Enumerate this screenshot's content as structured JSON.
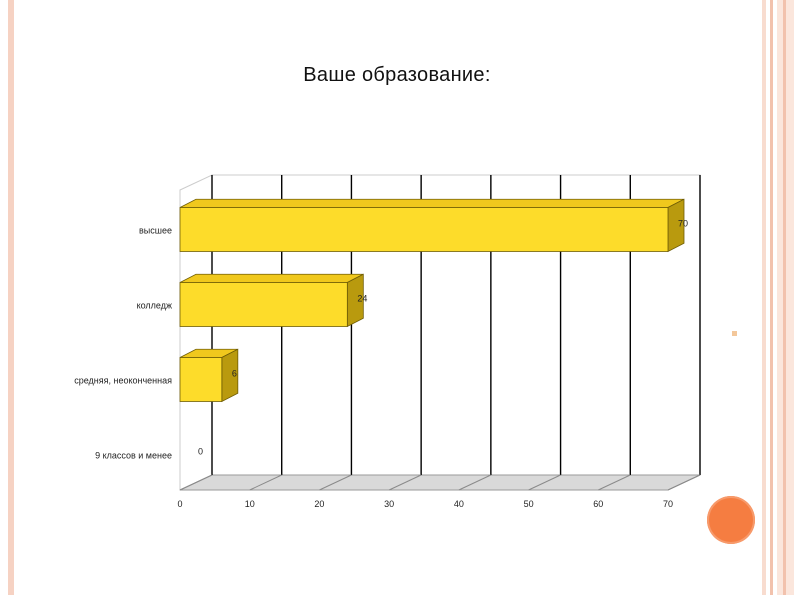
{
  "slide": {
    "title": "Ваше образование:"
  },
  "colors": {
    "bar_face": "#fddc2a",
    "bar_top": "#f0c81d",
    "bar_side": "#b99a0e",
    "grid": "#000000",
    "accent_circle": "#f57d41"
  },
  "chart_data": {
    "type": "bar",
    "orientation": "horizontal",
    "title": "",
    "xlabel": "",
    "ylabel": "",
    "categories": [
      "высшее",
      "колледж",
      "средняя, неоконченная",
      "9 классов и менее"
    ],
    "values": [
      70,
      24,
      6,
      0
    ],
    "xlim": [
      0,
      70
    ],
    "xticks": [
      0,
      10,
      20,
      30,
      40,
      50,
      60,
      70
    ],
    "grid": true,
    "legend": "none",
    "style": "3d"
  }
}
